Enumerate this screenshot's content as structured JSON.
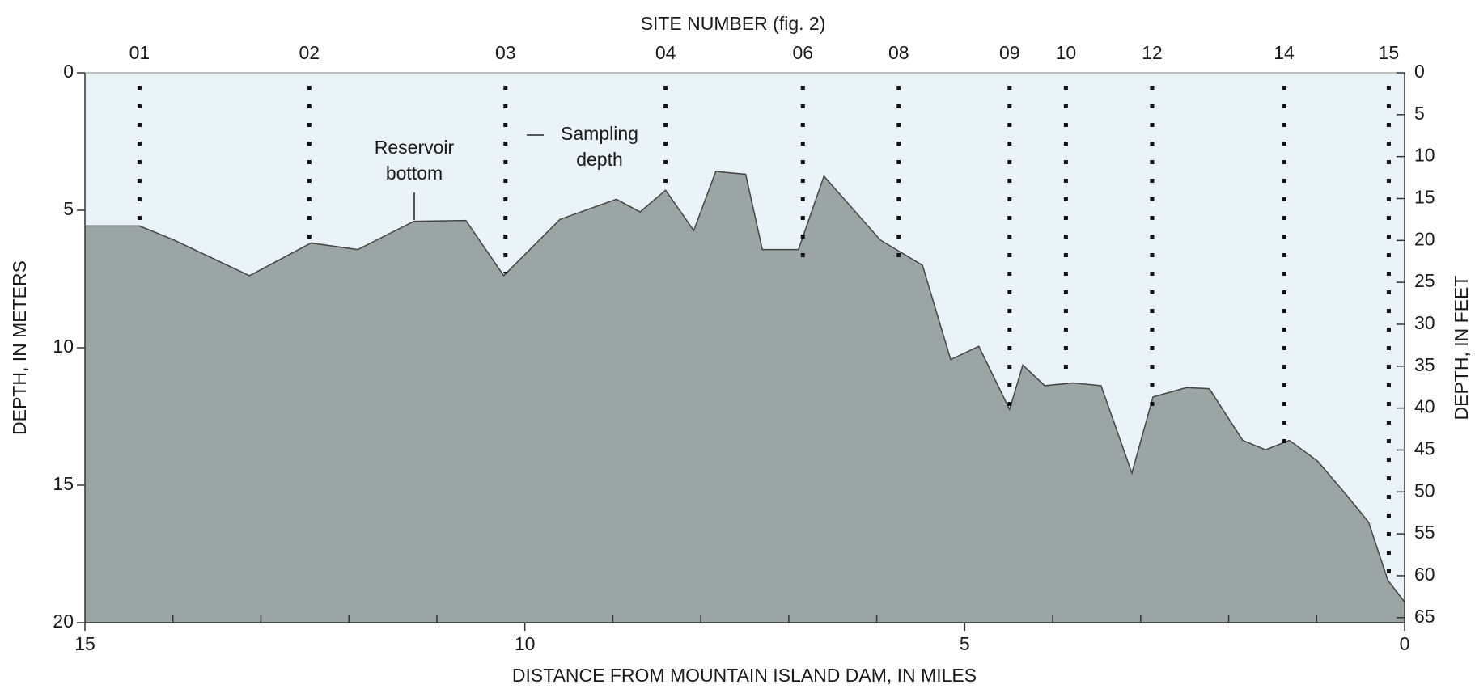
{
  "chart_data": {
    "type": "area",
    "title": "SITE NUMBER (fig. 2)",
    "x_label": "DISTANCE FROM MOUNTAIN ISLAND DAM, IN MILES",
    "y_label": "DEPTH, IN METERS",
    "y2_label": "DEPTH, IN FEET",
    "x": [
      15,
      14.38,
      13.99,
      13.13,
      12.43,
      11.9,
      11.26,
      10.67,
      10.24,
      9.6,
      8.96,
      8.69,
      8.4,
      8.08,
      7.83,
      7.49,
      7.3,
      6.89,
      6.6,
      5.96,
      5.48,
      5.16,
      4.84,
      4.49,
      4.34,
      4.09,
      3.77,
      3.45,
      3.1,
      2.86,
      2.48,
      2.22,
      1.84,
      1.58,
      1.31,
      0.99,
      0.67,
      0.41,
      0.19,
      0
    ],
    "series": [
      {
        "name": "Reservoir bottom",
        "color": "#9ba6a4",
        "values": [
          5.57,
          5.57,
          6.08,
          7.38,
          6.19,
          6.43,
          5.4,
          5.37,
          7.38,
          5.33,
          4.6,
          5.06,
          4.27,
          5.74,
          3.59,
          3.69,
          6.43,
          6.43,
          3.76,
          6.08,
          7.0,
          10.43,
          9.95,
          12.24,
          10.63,
          11.38,
          11.28,
          11.38,
          14.56,
          11.79,
          11.45,
          11.49,
          13.37,
          13.71,
          13.37,
          14.12,
          15.32,
          16.34,
          18.46,
          19.25
        ]
      }
    ],
    "sites": {
      "labels": [
        "01",
        "02",
        "03",
        "04",
        "06",
        "08",
        "09",
        "10",
        "12",
        "14",
        "15"
      ],
      "x": [
        14.38,
        12.45,
        10.22,
        8.4,
        6.84,
        5.75,
        4.49,
        3.85,
        2.87,
        1.37,
        0.18
      ],
      "depth": [
        5.5,
        6.2,
        7.3,
        4.3,
        6.8,
        6.8,
        12.2,
        11.3,
        12.3,
        13.6,
        18.6
      ]
    },
    "annotations": [
      {
        "lines": [
          "Reservoir",
          "bottom"
        ]
      },
      {
        "lines": [
          "Sampling",
          "depth"
        ]
      }
    ],
    "xlim": [
      15,
      0
    ],
    "xticks": [
      15,
      10,
      5,
      0
    ],
    "xminorticks": [
      14,
      13,
      12,
      11,
      9,
      8,
      7,
      6,
      4,
      3,
      2,
      1
    ],
    "ylim": [
      0,
      20
    ],
    "yticks": [
      0,
      5,
      10,
      15,
      20
    ],
    "y2lim": [
      0,
      65.6
    ],
    "y2ticks": [
      0,
      5,
      10,
      15,
      20,
      25,
      30,
      35,
      40,
      45,
      50,
      55,
      60,
      65
    ],
    "background": "#e9f3f8",
    "line_color": "#444444"
  }
}
